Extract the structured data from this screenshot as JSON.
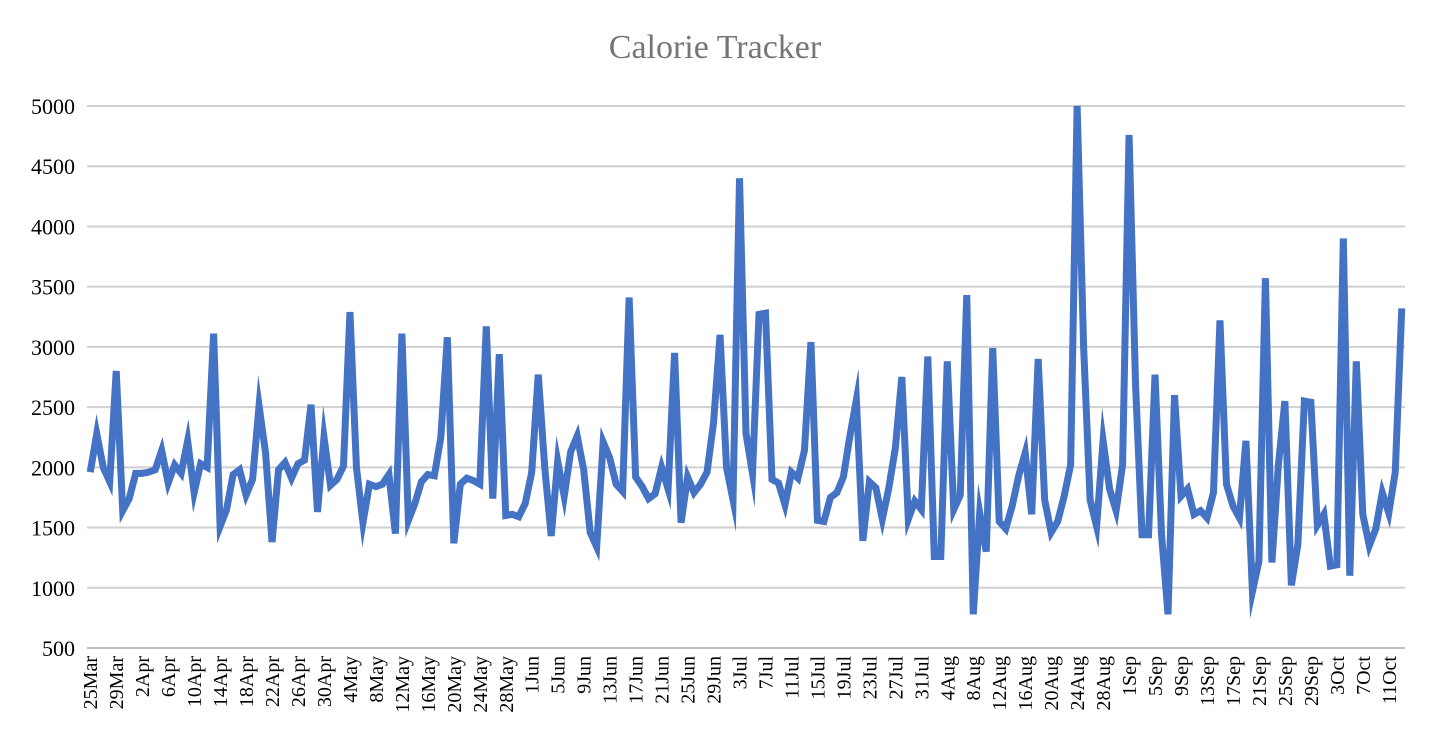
{
  "chart_data": {
    "type": "line",
    "title": "Calorie Tracker",
    "xlabel": "",
    "ylabel": "",
    "ylim": [
      500,
      5000
    ],
    "yticks": [
      500,
      1000,
      1500,
      2000,
      2500,
      3000,
      3500,
      4000,
      4500,
      5000
    ],
    "grid": true,
    "legend": "none",
    "x_tick_labels": [
      "25Mar",
      "29Mar",
      "2Apr",
      "6Apr",
      "10Apr",
      "14Apr",
      "18Apr",
      "22Apr",
      "26Apr",
      "30Apr",
      "4May",
      "8May",
      "12May",
      "16May",
      "20May",
      "24May",
      "28May",
      "1Jun",
      "5Jun",
      "9Jun",
      "13Jun",
      "17Jun",
      "21Jun",
      "25Jun",
      "29Jun",
      "3Jul",
      "7Jul",
      "11Jul",
      "15Jul",
      "19Jul",
      "23Jul",
      "27Jul",
      "31Jul",
      "4Aug",
      "8Aug",
      "12Aug",
      "16Aug",
      "20Aug",
      "24Aug",
      "28Aug",
      "1Sep",
      "5Sep",
      "9Sep",
      "13Sep",
      "17Sep",
      "21Sep",
      "25Sep",
      "29Sep",
      "3Oct",
      "7Oct",
      "11Oct"
    ],
    "tick_every_n_days": 4,
    "series": [
      {
        "color": "#4472C4",
        "values": [
          1960,
          2280,
          2000,
          1880,
          2800,
          1640,
          1740,
          1950,
          1950,
          1960,
          1980,
          2140,
          1870,
          2020,
          1950,
          2220,
          1790,
          2030,
          2000,
          3110,
          1510,
          1650,
          1940,
          1980,
          1770,
          1900,
          2510,
          2120,
          1380,
          1980,
          2040,
          1910,
          2030,
          2060,
          2520,
          1630,
          2250,
          1850,
          1900,
          2010,
          3290,
          2000,
          1540,
          1860,
          1840,
          1860,
          1940,
          1450,
          3110,
          1560,
          1700,
          1880,
          1940,
          1930,
          2250,
          3080,
          1370,
          1860,
          1910,
          1890,
          1860,
          3170,
          1740,
          2940,
          1600,
          1610,
          1590,
          1700,
          1960,
          2770,
          2000,
          1430,
          2050,
          1760,
          2130,
          2260,
          1980,
          1460,
          1340,
          2210,
          2080,
          1860,
          1800,
          3410,
          1920,
          1840,
          1740,
          1780,
          2000,
          1820,
          2950,
          1540,
          1920,
          1790,
          1860,
          1960,
          2370,
          3100,
          2000,
          1730,
          4400,
          2280,
          1950,
          3270,
          3280,
          1900,
          1870,
          1690,
          1960,
          1910,
          2140,
          3040,
          1560,
          1550,
          1750,
          1790,
          1920,
          2260,
          2560,
          1390,
          1880,
          1830,
          1570,
          1830,
          2160,
          2750,
          1570,
          1720,
          1650,
          2920,
          1260,
          1260,
          2880,
          1650,
          1770,
          3430,
          780,
          1620,
          1300,
          2990,
          1550,
          1490,
          1680,
          1930,
          2120,
          1610,
          2900,
          1730,
          1460,
          1550,
          1760,
          2020,
          5000,
          3000,
          1730,
          1510,
          2220,
          1820,
          1640,
          2020,
          4760,
          2680,
          1440,
          1440,
          2770,
          1440,
          780,
          2600,
          1760,
          1820,
          1610,
          1640,
          1580,
          1790,
          3220,
          1860,
          1680,
          1580,
          2220,
          970,
          1220,
          3570,
          1210,
          2020,
          2550,
          1020,
          1360,
          2550,
          2540,
          1520,
          1610,
          1180,
          1190,
          3900,
          1100,
          2880,
          1610,
          1350,
          1490,
          1790,
          1620,
          1960,
          3320
        ]
      }
    ]
  }
}
